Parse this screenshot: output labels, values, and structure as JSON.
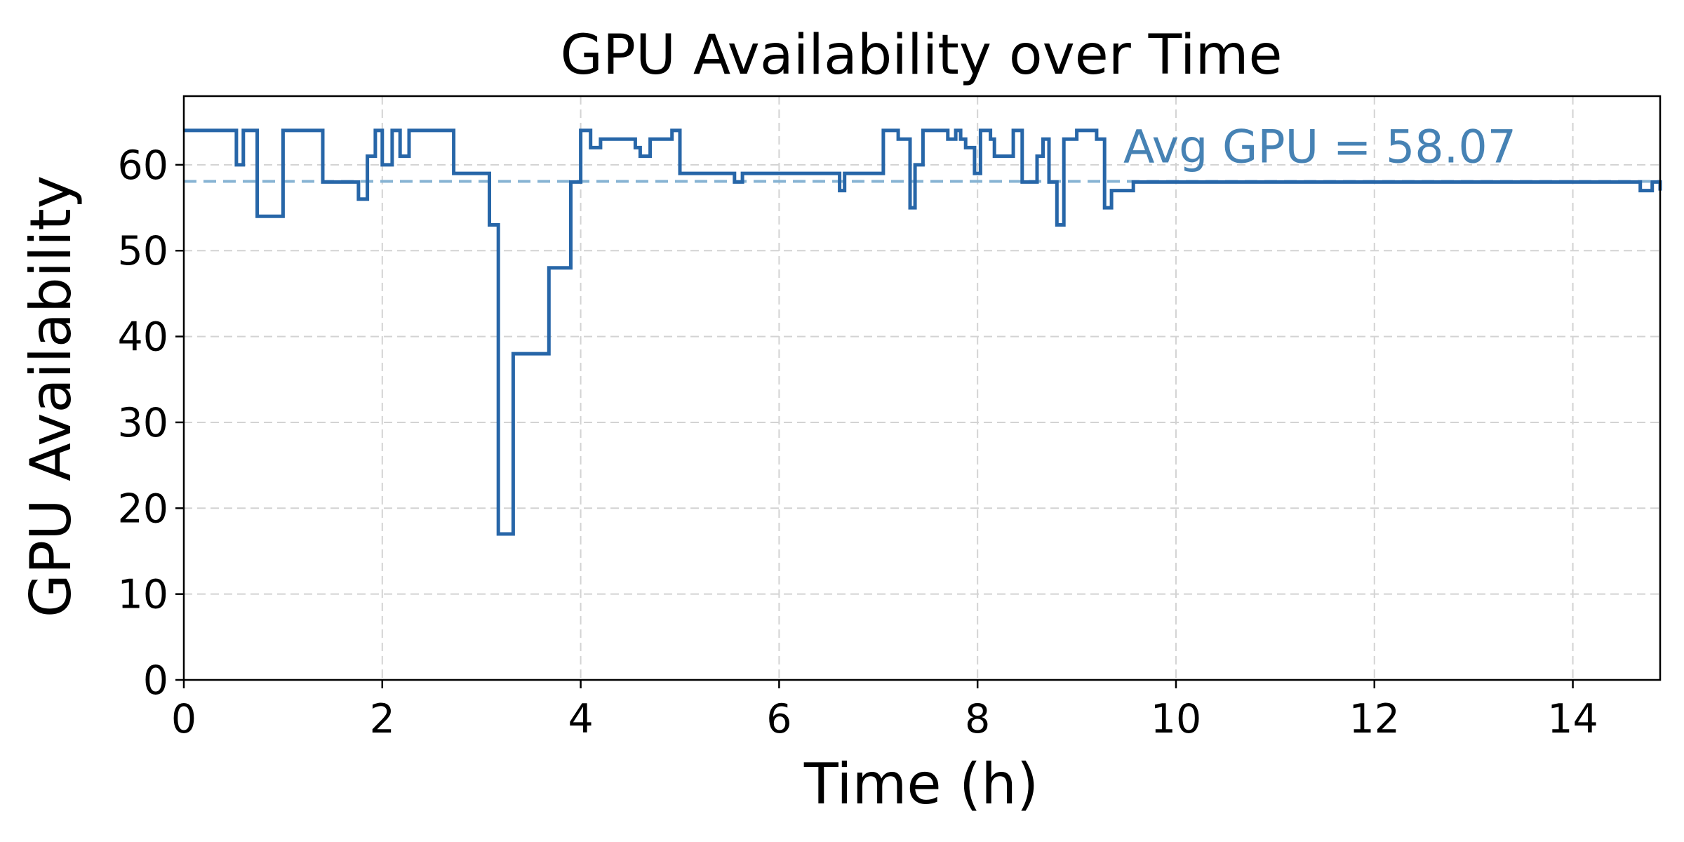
{
  "chart_data": {
    "type": "line",
    "step": true,
    "title": "GPU Availability over Time",
    "xlabel": "Time (h)",
    "ylabel": "GPU Availability",
    "xlim": [
      0,
      14.88
    ],
    "ylim": [
      0,
      68
    ],
    "xticks": [
      0,
      2,
      4,
      6,
      8,
      10,
      12,
      14
    ],
    "yticks": [
      0,
      10,
      20,
      30,
      40,
      50,
      60
    ],
    "grid": true,
    "colors": {
      "line": "#2766a8",
      "avg_line": "#87b3d3",
      "annotation": "#4682b4"
    },
    "average": {
      "value": 58.07,
      "label": "Avg GPU = 58.07"
    },
    "series": [
      {
        "x": [
          0,
          0.53,
          0.6,
          0.66,
          0.74,
          1.0,
          1.4,
          1.76,
          1.85,
          1.93,
          2.0,
          2.1,
          2.18,
          2.27,
          2.36,
          2.4,
          2.72,
          3.08,
          3.17,
          3.32,
          3.68,
          3.9,
          4.0,
          4.1,
          4.2,
          4.55,
          4.6,
          4.7,
          4.81,
          4.92,
          5.0,
          5.55,
          5.63,
          6.4,
          6.61,
          6.66,
          6.8,
          7.05,
          7.2,
          7.32,
          7.37,
          7.45,
          7.55,
          7.7,
          7.78,
          7.83,
          7.88,
          7.97,
          8.03,
          8.13,
          8.17,
          8.36,
          8.45,
          8.6,
          8.66,
          8.72,
          8.8,
          8.87,
          9.0,
          9.2,
          9.28,
          9.35,
          9.57,
          10.0,
          14.6,
          14.68,
          14.8,
          14.88
        ],
        "y": [
          64,
          60,
          64,
          64,
          54,
          64,
          58,
          56,
          61,
          64,
          60,
          64,
          61,
          64,
          64,
          64,
          59,
          53,
          17,
          38,
          48,
          58,
          64,
          62,
          63,
          62,
          61,
          63,
          63,
          64,
          59,
          58,
          59,
          59,
          57,
          59,
          59,
          64,
          63,
          55,
          60,
          64,
          64,
          63,
          64,
          63,
          62,
          59,
          64,
          63,
          61,
          64,
          58,
          61,
          63,
          58,
          53,
          63,
          64,
          63,
          55,
          57,
          58,
          58,
          58,
          57,
          58,
          57
        ]
      }
    ]
  }
}
